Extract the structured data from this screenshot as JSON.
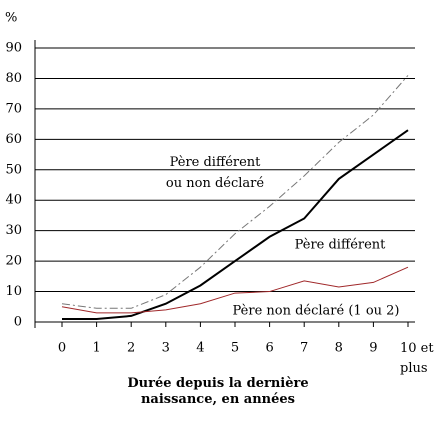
{
  "chart_data": {
    "type": "line",
    "y_label": "%",
    "x_label": "Durée depuis la dernière naissance, en années",
    "categories": [
      "0",
      "1",
      "2",
      "3",
      "4",
      "5",
      "6",
      "7",
      "8",
      "9",
      "10 et plus"
    ],
    "series": [
      {
        "name": "Père différent ou non déclaré",
        "color": "#777777",
        "dashed": true,
        "values": [
          6,
          4.5,
          4.5,
          9,
          18,
          29,
          38,
          48,
          59,
          68,
          81
        ]
      },
      {
        "name": "Père différent",
        "color": "#000000",
        "values": [
          1,
          1,
          2,
          6,
          12,
          20,
          28,
          34,
          47,
          55,
          63
        ]
      },
      {
        "name": "Père non déclaré (1 ou 2)",
        "color": "#a0282a",
        "values": [
          5,
          3,
          3,
          4,
          6,
          9.5,
          10,
          13.5,
          11.5,
          13,
          18
        ]
      }
    ],
    "ylim": [
      0,
      90
    ],
    "yticks": [
      0,
      10,
      20,
      30,
      40,
      50,
      60,
      70,
      80,
      90
    ],
    "grid": true
  }
}
